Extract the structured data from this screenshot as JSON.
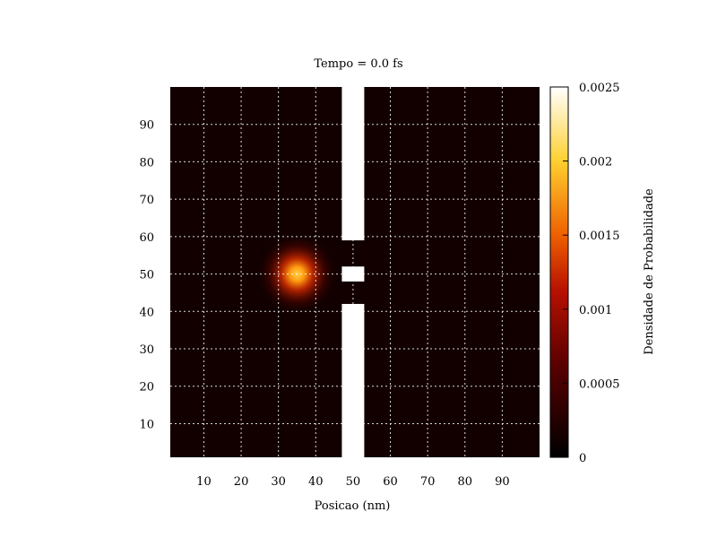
{
  "chart_data": {
    "type": "heatmap",
    "title": "Tempo = 0.0 fs",
    "xlabel": "Posicao (nm)",
    "ylabel": "",
    "xlim": [
      1,
      100
    ],
    "ylim": [
      1,
      100
    ],
    "xticks": [
      10,
      20,
      30,
      40,
      50,
      60,
      70,
      80,
      90
    ],
    "yticks": [
      10,
      20,
      30,
      40,
      50,
      60,
      70,
      80,
      90
    ],
    "xtick_labels": [
      "10",
      "20",
      "30",
      "40",
      "50",
      "60",
      "70",
      "80",
      "90"
    ],
    "ytick_labels": [
      "10",
      "20",
      "30",
      "40",
      "50",
      "60",
      "70",
      "80",
      "90"
    ],
    "grid": true,
    "colorbar": {
      "label": "Densidade de Probabilidade",
      "range": [
        0,
        0.0025
      ],
      "ticks": [
        0,
        0.0005,
        0.001,
        0.0015,
        0.002,
        0.0025
      ],
      "tick_labels": [
        "0",
        "0.0005",
        "0.001",
        "0.0015",
        "0.002",
        "0.0025"
      ]
    },
    "wavepacket": {
      "center_x": 35,
      "center_y": 50,
      "peak_density": 0.0013,
      "sigma": 2.2
    },
    "barrier": {
      "x_range": [
        47,
        53
      ],
      "slits_y": [
        [
          42,
          48
        ],
        [
          52,
          59
        ]
      ]
    },
    "colors": {
      "background": "#120000",
      "barrier": "#ffffff",
      "grid": "#ffffff"
    }
  }
}
